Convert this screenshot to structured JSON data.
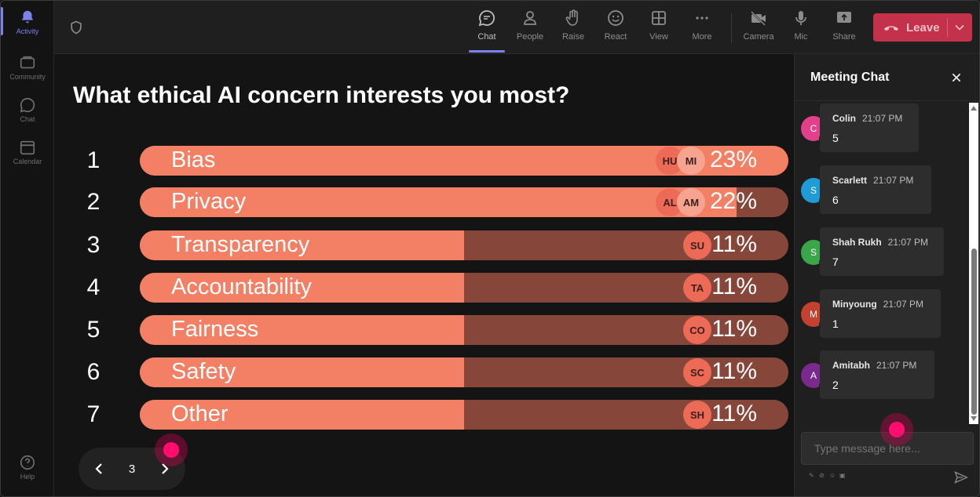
{
  "rail": {
    "items": [
      {
        "label": "Activity",
        "icon": "bell-icon"
      },
      {
        "label": "Community",
        "icon": "community-icon"
      },
      {
        "label": "Chat",
        "icon": "chat-icon"
      },
      {
        "label": "Calendar",
        "icon": "calendar-icon"
      },
      {
        "label": "Help",
        "icon": "help-icon"
      }
    ]
  },
  "toolbar": {
    "buttons": [
      {
        "label": "Chat",
        "icon": "chat-icon"
      },
      {
        "label": "People",
        "icon": "people-icon"
      },
      {
        "label": "Raise",
        "icon": "raise-hand-icon"
      },
      {
        "label": "React",
        "icon": "smile-icon"
      },
      {
        "label": "View",
        "icon": "grid-icon"
      },
      {
        "label": "More",
        "icon": "more-icon"
      },
      {
        "label": "Camera",
        "icon": "camera-off-icon"
      },
      {
        "label": "Mic",
        "icon": "mic-icon"
      },
      {
        "label": "Share",
        "icon": "share-icon"
      }
    ],
    "leave_label": "Leave"
  },
  "poll": {
    "question": "What ethical AI concern interests you most?",
    "options": [
      {
        "rank": "1",
        "label": "Bias",
        "percent": "23%",
        "fill": 1.0,
        "avatars": [
          "HU",
          "MI"
        ]
      },
      {
        "rank": "2",
        "label": "Privacy",
        "percent": "22%",
        "fill": 0.92,
        "avatars": [
          "AL",
          "AM"
        ]
      },
      {
        "rank": "3",
        "label": "Transparency",
        "percent": "11%",
        "fill": 0.5,
        "avatars": [
          "SU"
        ]
      },
      {
        "rank": "4",
        "label": "Accountability",
        "percent": "11%",
        "fill": 0.5,
        "avatars": [
          "TA"
        ]
      },
      {
        "rank": "5",
        "label": "Fairness",
        "percent": "11%",
        "fill": 0.5,
        "avatars": [
          "CO"
        ]
      },
      {
        "rank": "6",
        "label": "Safety",
        "percent": "11%",
        "fill": 0.5,
        "avatars": [
          "SC"
        ]
      },
      {
        "rank": "7",
        "label": "Other",
        "percent": "11%",
        "fill": 0.5,
        "avatars": [
          "SH"
        ]
      }
    ],
    "page": "3"
  },
  "chat": {
    "title": "Meeting Chat",
    "messages": [
      {
        "initial": "C",
        "name": "Colin",
        "time": "21:07 PM",
        "text": "5",
        "color": "#e2408a"
      },
      {
        "initial": "S",
        "name": "Scarlett",
        "time": "21:07 PM",
        "text": "6",
        "color": "#1f9bd6"
      },
      {
        "initial": "S",
        "name": "Shah Rukh",
        "time": "21:07 PM",
        "text": "7",
        "color": "#3aa64a"
      },
      {
        "initial": "M",
        "name": "Minyoung",
        "time": "21:07 PM",
        "text": "1",
        "color": "#c4402f"
      },
      {
        "initial": "A",
        "name": "Amitabh",
        "time": "21:07 PM",
        "text": "2",
        "color": "#7a2a8e"
      }
    ],
    "input_placeholder": "Type message here..."
  },
  "colors": {
    "accent": "#7b83eb",
    "bar_fill": "#f37f65",
    "bar_track": "#86473a",
    "leave": "#c4314b"
  }
}
